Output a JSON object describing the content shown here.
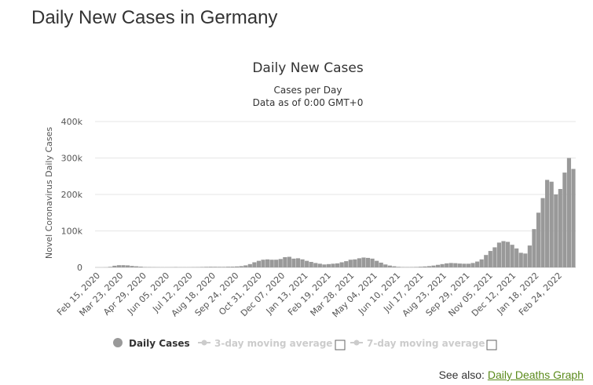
{
  "page": {
    "title": "Daily New Cases in Germany"
  },
  "colors": {
    "bars": "#999999",
    "grid": "#e6e6e6",
    "legend_inactive": "#cccccc",
    "link": "#5a8a1a"
  },
  "chart_data": {
    "type": "bar",
    "title": "Daily New Cases",
    "subtitle_lines": [
      "Cases per Day",
      "Data as of 0:00 GMT+0"
    ],
    "ylabel": "Novel Coronavirus Daily Cases",
    "ylim": [
      0,
      400000
    ],
    "y_ticks": [
      "0",
      "100k",
      "200k",
      "300k",
      "400k"
    ],
    "x_tick_labels": [
      "Feb 15, 2020",
      "Mar 23, 2020",
      "Apr 29, 2020",
      "Jun 05, 2020",
      "Jul 12, 2020",
      "Aug 18, 2020",
      "Sep 24, 2020",
      "Oct 31, 2020",
      "Dec 07, 2020",
      "Jan 13, 2021",
      "Feb 19, 2021",
      "Mar 28, 2021",
      "May 04, 2021",
      "Jun 10, 2021",
      "Jul 17, 2021",
      "Aug 23, 2021",
      "Sep 29, 2021",
      "Nov 05, 2021",
      "Dec 12, 2021",
      "Jan 18, 2022",
      "Feb 24, 2022"
    ],
    "week_starts": [
      "Feb 15, 2020",
      "Feb 22, 2020",
      "Feb 29, 2020",
      "Mar 07, 2020",
      "Mar 14, 2020",
      "Mar 21, 2020",
      "Mar 28, 2020",
      "Apr 04, 2020",
      "Apr 11, 2020",
      "Apr 18, 2020",
      "Apr 25, 2020",
      "May 02, 2020",
      "May 09, 2020",
      "May 16, 2020",
      "May 23, 2020",
      "May 30, 2020",
      "Jun 06, 2020",
      "Jun 13, 2020",
      "Jun 20, 2020",
      "Jun 27, 2020",
      "Jul 04, 2020",
      "Jul 11, 2020",
      "Jul 18, 2020",
      "Jul 25, 2020",
      "Aug 01, 2020",
      "Aug 08, 2020",
      "Aug 15, 2020",
      "Aug 22, 2020",
      "Aug 29, 2020",
      "Sep 05, 2020",
      "Sep 12, 2020",
      "Sep 19, 2020",
      "Sep 26, 2020",
      "Oct 03, 2020",
      "Oct 10, 2020",
      "Oct 17, 2020",
      "Oct 24, 2020",
      "Oct 31, 2020",
      "Nov 07, 2020",
      "Nov 14, 2020",
      "Nov 21, 2020",
      "Nov 28, 2020",
      "Dec 05, 2020",
      "Dec 12, 2020",
      "Dec 19, 2020",
      "Dec 26, 2020",
      "Jan 02, 2021",
      "Jan 09, 2021",
      "Jan 16, 2021",
      "Jan 23, 2021",
      "Jan 30, 2021",
      "Feb 06, 2021",
      "Feb 13, 2021",
      "Feb 20, 2021",
      "Feb 27, 2021",
      "Mar 06, 2021",
      "Mar 13, 2021",
      "Mar 20, 2021",
      "Mar 27, 2021",
      "Apr 03, 2021",
      "Apr 10, 2021",
      "Apr 17, 2021",
      "Apr 24, 2021",
      "May 01, 2021",
      "May 08, 2021",
      "May 15, 2021",
      "May 22, 2021",
      "May 29, 2021",
      "Jun 05, 2021",
      "Jun 12, 2021",
      "Jun 19, 2021",
      "Jun 26, 2021",
      "Jul 03, 2021",
      "Jul 10, 2021",
      "Jul 17, 2021",
      "Jul 24, 2021",
      "Jul 31, 2021",
      "Aug 07, 2021",
      "Aug 14, 2021",
      "Aug 21, 2021",
      "Aug 28, 2021",
      "Sep 04, 2021",
      "Sep 11, 2021",
      "Sep 18, 2021",
      "Sep 25, 2021",
      "Oct 02, 2021",
      "Oct 09, 2021",
      "Oct 16, 2021",
      "Oct 23, 2021",
      "Oct 30, 2021",
      "Nov 06, 2021",
      "Nov 13, 2021",
      "Nov 20, 2021",
      "Nov 27, 2021",
      "Dec 04, 2021",
      "Dec 11, 2021",
      "Dec 18, 2021",
      "Dec 25, 2021",
      "Jan 01, 2022",
      "Jan 08, 2022",
      "Jan 15, 2022",
      "Jan 22, 2022",
      "Jan 29, 2022",
      "Feb 05, 2022",
      "Feb 12, 2022",
      "Feb 19, 2022",
      "Feb 26, 2022",
      "Mar 05, 2022",
      "Mar 12, 2022",
      "Mar 19, 2022"
    ],
    "series": [
      {
        "name": "Daily Cases",
        "note": "approximate weekly peak daily values read from the chart",
        "values": [
          0,
          0,
          200,
          1500,
          4500,
          6000,
          6000,
          5500,
          4000,
          3000,
          2000,
          1000,
          800,
          600,
          500,
          400,
          400,
          500,
          800,
          500,
          500,
          500,
          700,
          800,
          1200,
          1500,
          1700,
          1600,
          1500,
          1500,
          1900,
          2100,
          2600,
          3500,
          5500,
          9000,
          14000,
          18000,
          21000,
          22000,
          21000,
          21000,
          23000,
          28000,
          29000,
          24000,
          25000,
          22000,
          18000,
          15000,
          12000,
          10000,
          8000,
          9000,
          10000,
          11000,
          14000,
          17000,
          21000,
          22000,
          25000,
          27000,
          26000,
          24000,
          18000,
          13000,
          8000,
          5000,
          3000,
          1500,
          1000,
          800,
          900,
          1200,
          1800,
          2500,
          3500,
          5000,
          7000,
          9000,
          11000,
          12000,
          11500,
          10500,
          10000,
          10000,
          12000,
          16000,
          22000,
          34000,
          45000,
          55000,
          68000,
          72000,
          70000,
          62000,
          52000,
          40000,
          38000,
          60000,
          105000,
          150000,
          190000,
          240000,
          235000,
          200000,
          215000,
          260000,
          300000,
          270000
        ]
      }
    ],
    "legend": {
      "position": "bottom-left",
      "items": [
        {
          "label": "Daily Cases",
          "active": true
        },
        {
          "label": "3-day moving average",
          "active": false
        },
        {
          "label": "7-day moving average",
          "active": false
        }
      ]
    },
    "grid": true
  },
  "footer": {
    "see_also_label": "See also:",
    "link_text": "Daily Deaths Graph"
  }
}
